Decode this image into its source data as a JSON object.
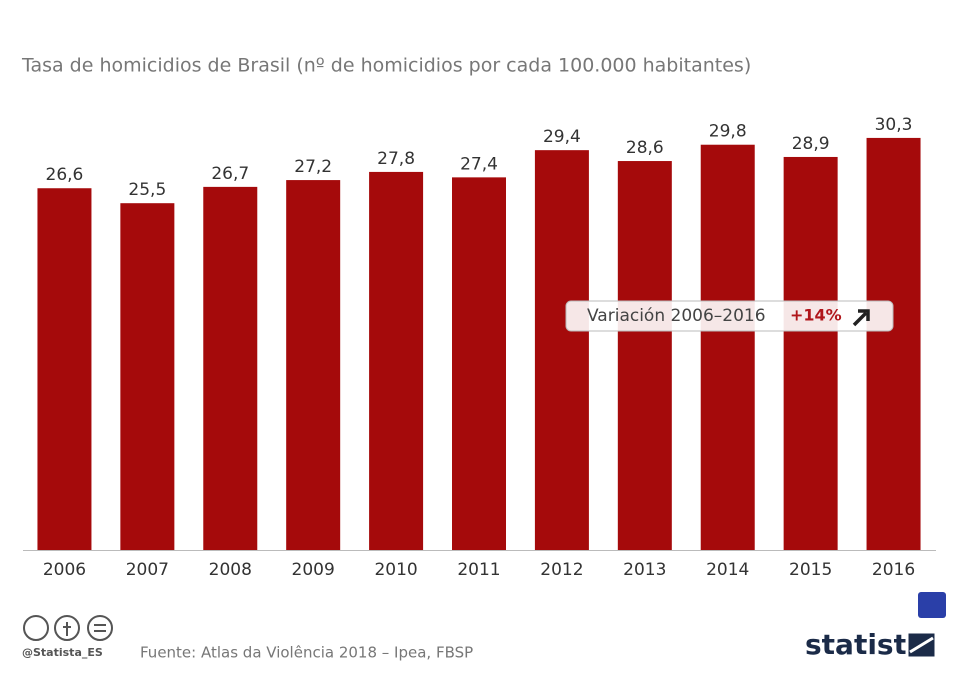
{
  "chart_data": {
    "type": "bar",
    "title": "Tasa de homicidios de Brasil (nº de homicidios por cada 100.000 habitantes)",
    "categories": [
      "2006",
      "2007",
      "2008",
      "2009",
      "2010",
      "2011",
      "2012",
      "2013",
      "2014",
      "2015",
      "2016"
    ],
    "values": [
      26.6,
      25.5,
      26.7,
      27.2,
      27.8,
      27.4,
      29.4,
      28.6,
      29.8,
      28.9,
      30.3
    ],
    "value_labels": [
      "26,6",
      "25,5",
      "26,7",
      "27,2",
      "27,8",
      "27,4",
      "29,4",
      "28,6",
      "29,8",
      "28,9",
      "30,3"
    ],
    "color": "#a50a0b",
    "ylim": [
      0,
      40
    ],
    "annotation": {
      "label": "Variación 2006–2016",
      "change": "+14%"
    },
    "source": "Fuente: Atlas da Violência 2018 – Ipea, FBSP",
    "credit": "@Statista_ES",
    "brand": "statista"
  }
}
